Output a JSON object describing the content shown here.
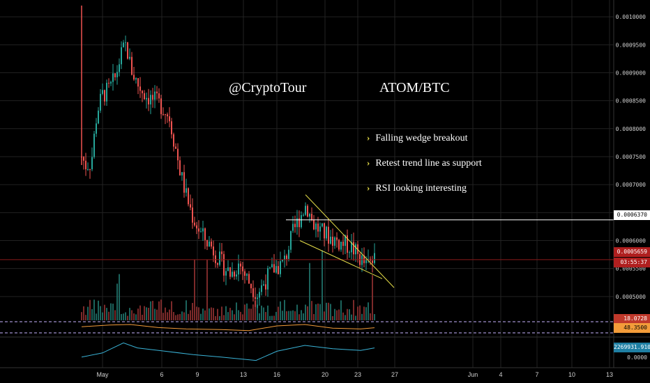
{
  "colors": {
    "background": "#000000",
    "grid": "#222222",
    "axis_text": "#d0d0d0",
    "candle_up": "#26a69a",
    "candle_down": "#ef5350",
    "wedge_line": "#e8e04a",
    "resistance_line": "#ffffff",
    "current_price_line": "#8b1a1a",
    "rsi_line": "#f39c3a",
    "obv_line": "#3ab4d8",
    "dashed_level": "#c8b4ff"
  },
  "watermark": {
    "author": "@CryptoTour",
    "pair": "ATOM/BTC"
  },
  "bullets": [
    {
      "icon": "chevron-right-icon",
      "text": "Falling wedge breakout"
    },
    {
      "icon": "chevron-right-icon",
      "text": "Retest trend line as support"
    },
    {
      "icon": "chevron-right-icon",
      "text": "RSI looking interesting"
    }
  ],
  "price_axis": {
    "ticks": [
      "0.0010000",
      "0.0009500",
      "0.0009000",
      "0.0008500",
      "0.0008000",
      "0.0007500",
      "0.0007000",
      "0.0006500",
      "0.0006000",
      "0.0005500",
      "0.0005000"
    ],
    "markers": {
      "resistance": "0.0006370",
      "current_price": "0.0005659",
      "countdown": "03:55:37",
      "volume": "18.0728",
      "rsi": "48.3500",
      "obv": "2269931.9100",
      "obv_zero": "0.0000"
    }
  },
  "time_axis": {
    "labels": [
      "May",
      "6",
      "9",
      "13",
      "16",
      "20",
      "23",
      "27",
      "Jun",
      "4",
      "7",
      "10",
      "13"
    ]
  },
  "chart_data": {
    "type": "candlestick",
    "title": "ATOM/BTC",
    "ylim": [
      0.00046,
      0.00102
    ],
    "annotations": {
      "resistance_level": 0.000637,
      "current_price": 0.0005659,
      "wedge_upper_start": 0.000682,
      "wedge_upper_end": 0.000516,
      "wedge_lower_start": 0.0006,
      "wedge_lower_end": 0.000532
    },
    "candle_path": [
      {
        "x": 0,
        "v": 0.00075
      },
      {
        "x": 6,
        "v": 0.000735
      },
      {
        "x": 14,
        "v": 0.00074
      },
      {
        "x": 22,
        "v": 0.00083
      },
      {
        "x": 30,
        "v": 0.00086
      },
      {
        "x": 40,
        "v": 0.00087
      },
      {
        "x": 48,
        "v": 0.00089
      },
      {
        "x": 56,
        "v": 0.00093
      },
      {
        "x": 64,
        "v": 0.00095
      },
      {
        "x": 70,
        "v": 0.00091
      },
      {
        "x": 80,
        "v": 0.00088
      },
      {
        "x": 92,
        "v": 0.00086
      },
      {
        "x": 104,
        "v": 0.00085
      },
      {
        "x": 116,
        "v": 0.00084
      },
      {
        "x": 126,
        "v": 0.00082
      },
      {
        "x": 134,
        "v": 0.00077
      },
      {
        "x": 142,
        "v": 0.00072
      },
      {
        "x": 150,
        "v": 0.00068
      },
      {
        "x": 160,
        "v": 0.00064
      },
      {
        "x": 172,
        "v": 0.00061
      },
      {
        "x": 186,
        "v": 0.00059
      },
      {
        "x": 200,
        "v": 0.00056
      },
      {
        "x": 214,
        "v": 0.00054
      },
      {
        "x": 226,
        "v": 0.00056
      },
      {
        "x": 238,
        "v": 0.00053
      },
      {
        "x": 252,
        "v": 0.000505
      },
      {
        "x": 264,
        "v": 0.00053
      },
      {
        "x": 276,
        "v": 0.00055
      },
      {
        "x": 290,
        "v": 0.00056
      },
      {
        "x": 302,
        "v": 0.00061
      },
      {
        "x": 312,
        "v": 0.00064
      },
      {
        "x": 322,
        "v": 0.000665
      },
      {
        "x": 332,
        "v": 0.00063
      },
      {
        "x": 344,
        "v": 0.000615
      },
      {
        "x": 358,
        "v": 0.000605
      },
      {
        "x": 372,
        "v": 0.000595
      },
      {
        "x": 386,
        "v": 0.00059
      },
      {
        "x": 398,
        "v": 0.00057
      },
      {
        "x": 408,
        "v": 0.000555
      },
      {
        "x": 414,
        "v": 0.00056
      },
      {
        "x": 420,
        "v": 0.000566
      }
    ],
    "rsi": {
      "ylim": [
        20,
        80
      ],
      "points": [
        [
          0,
          52
        ],
        [
          40,
          58
        ],
        [
          70,
          60
        ],
        [
          110,
          49
        ],
        [
          150,
          44
        ],
        [
          200,
          42
        ],
        [
          240,
          38
        ],
        [
          280,
          55
        ],
        [
          320,
          60
        ],
        [
          360,
          47
        ],
        [
          400,
          44
        ],
        [
          420,
          48.35
        ]
      ]
    },
    "obv": {
      "points": [
        [
          0,
          0.05
        ],
        [
          30,
          0.3
        ],
        [
          60,
          0.9
        ],
        [
          80,
          0.6
        ],
        [
          120,
          0.4
        ],
        [
          160,
          0.2
        ],
        [
          200,
          0.05
        ],
        [
          250,
          -0.15
        ],
        [
          280,
          0.4
        ],
        [
          320,
          0.75
        ],
        [
          360,
          0.55
        ],
        [
          400,
          0.45
        ],
        [
          420,
          0.6
        ]
      ]
    }
  }
}
